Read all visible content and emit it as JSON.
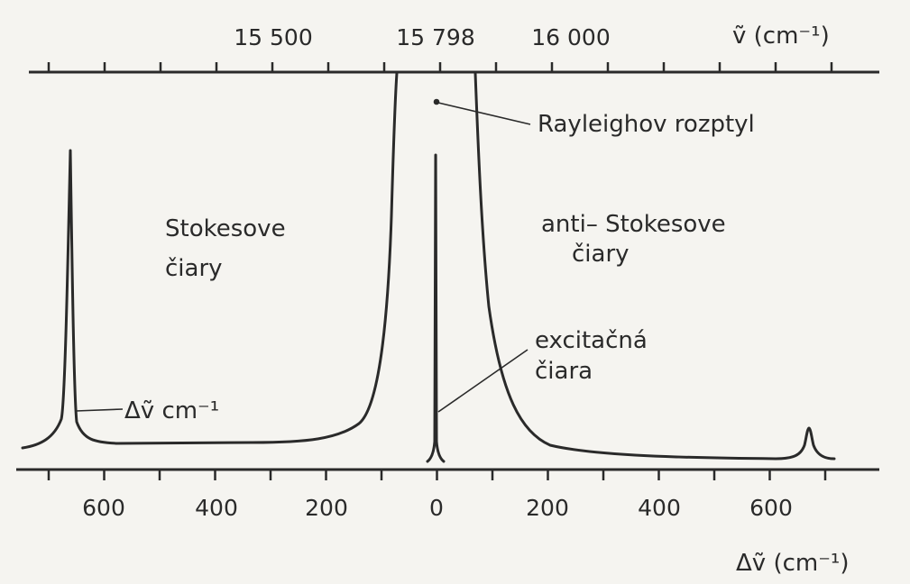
{
  "figure": {
    "top_axis": {
      "ticks": [
        {
          "value": 15500,
          "text": "15 500"
        },
        {
          "value": 15798,
          "text": "15 798"
        },
        {
          "value": 16000,
          "text": "16 000"
        }
      ],
      "unit_label": "ṽ (cm⁻¹)"
    },
    "bottom_axis": {
      "ticks": [
        {
          "value": -600,
          "text": "600"
        },
        {
          "value": -400,
          "text": "400"
        },
        {
          "value": -200,
          "text": "200"
        },
        {
          "value": 0,
          "text": "0"
        },
        {
          "value": 200,
          "text": "200"
        },
        {
          "value": 400,
          "text": "400"
        },
        {
          "value": 600,
          "text": "600"
        }
      ],
      "unit_label": "Δṽ (cm⁻¹)"
    },
    "annotations": {
      "rayleigh": "Rayleighov rozptyl",
      "stokes_line1": "Stokesove",
      "stokes_line2": "čiary",
      "antistokes_line1": "anti– Stokesove",
      "antistokes_line2": "čiary",
      "excitation_line1": "excitačná",
      "excitation_line2": "čiara",
      "delta_label": "Δṽ cm⁻¹"
    },
    "colors": {
      "ink": "#2a2a2a",
      "paper": "#f5f4f0"
    }
  }
}
